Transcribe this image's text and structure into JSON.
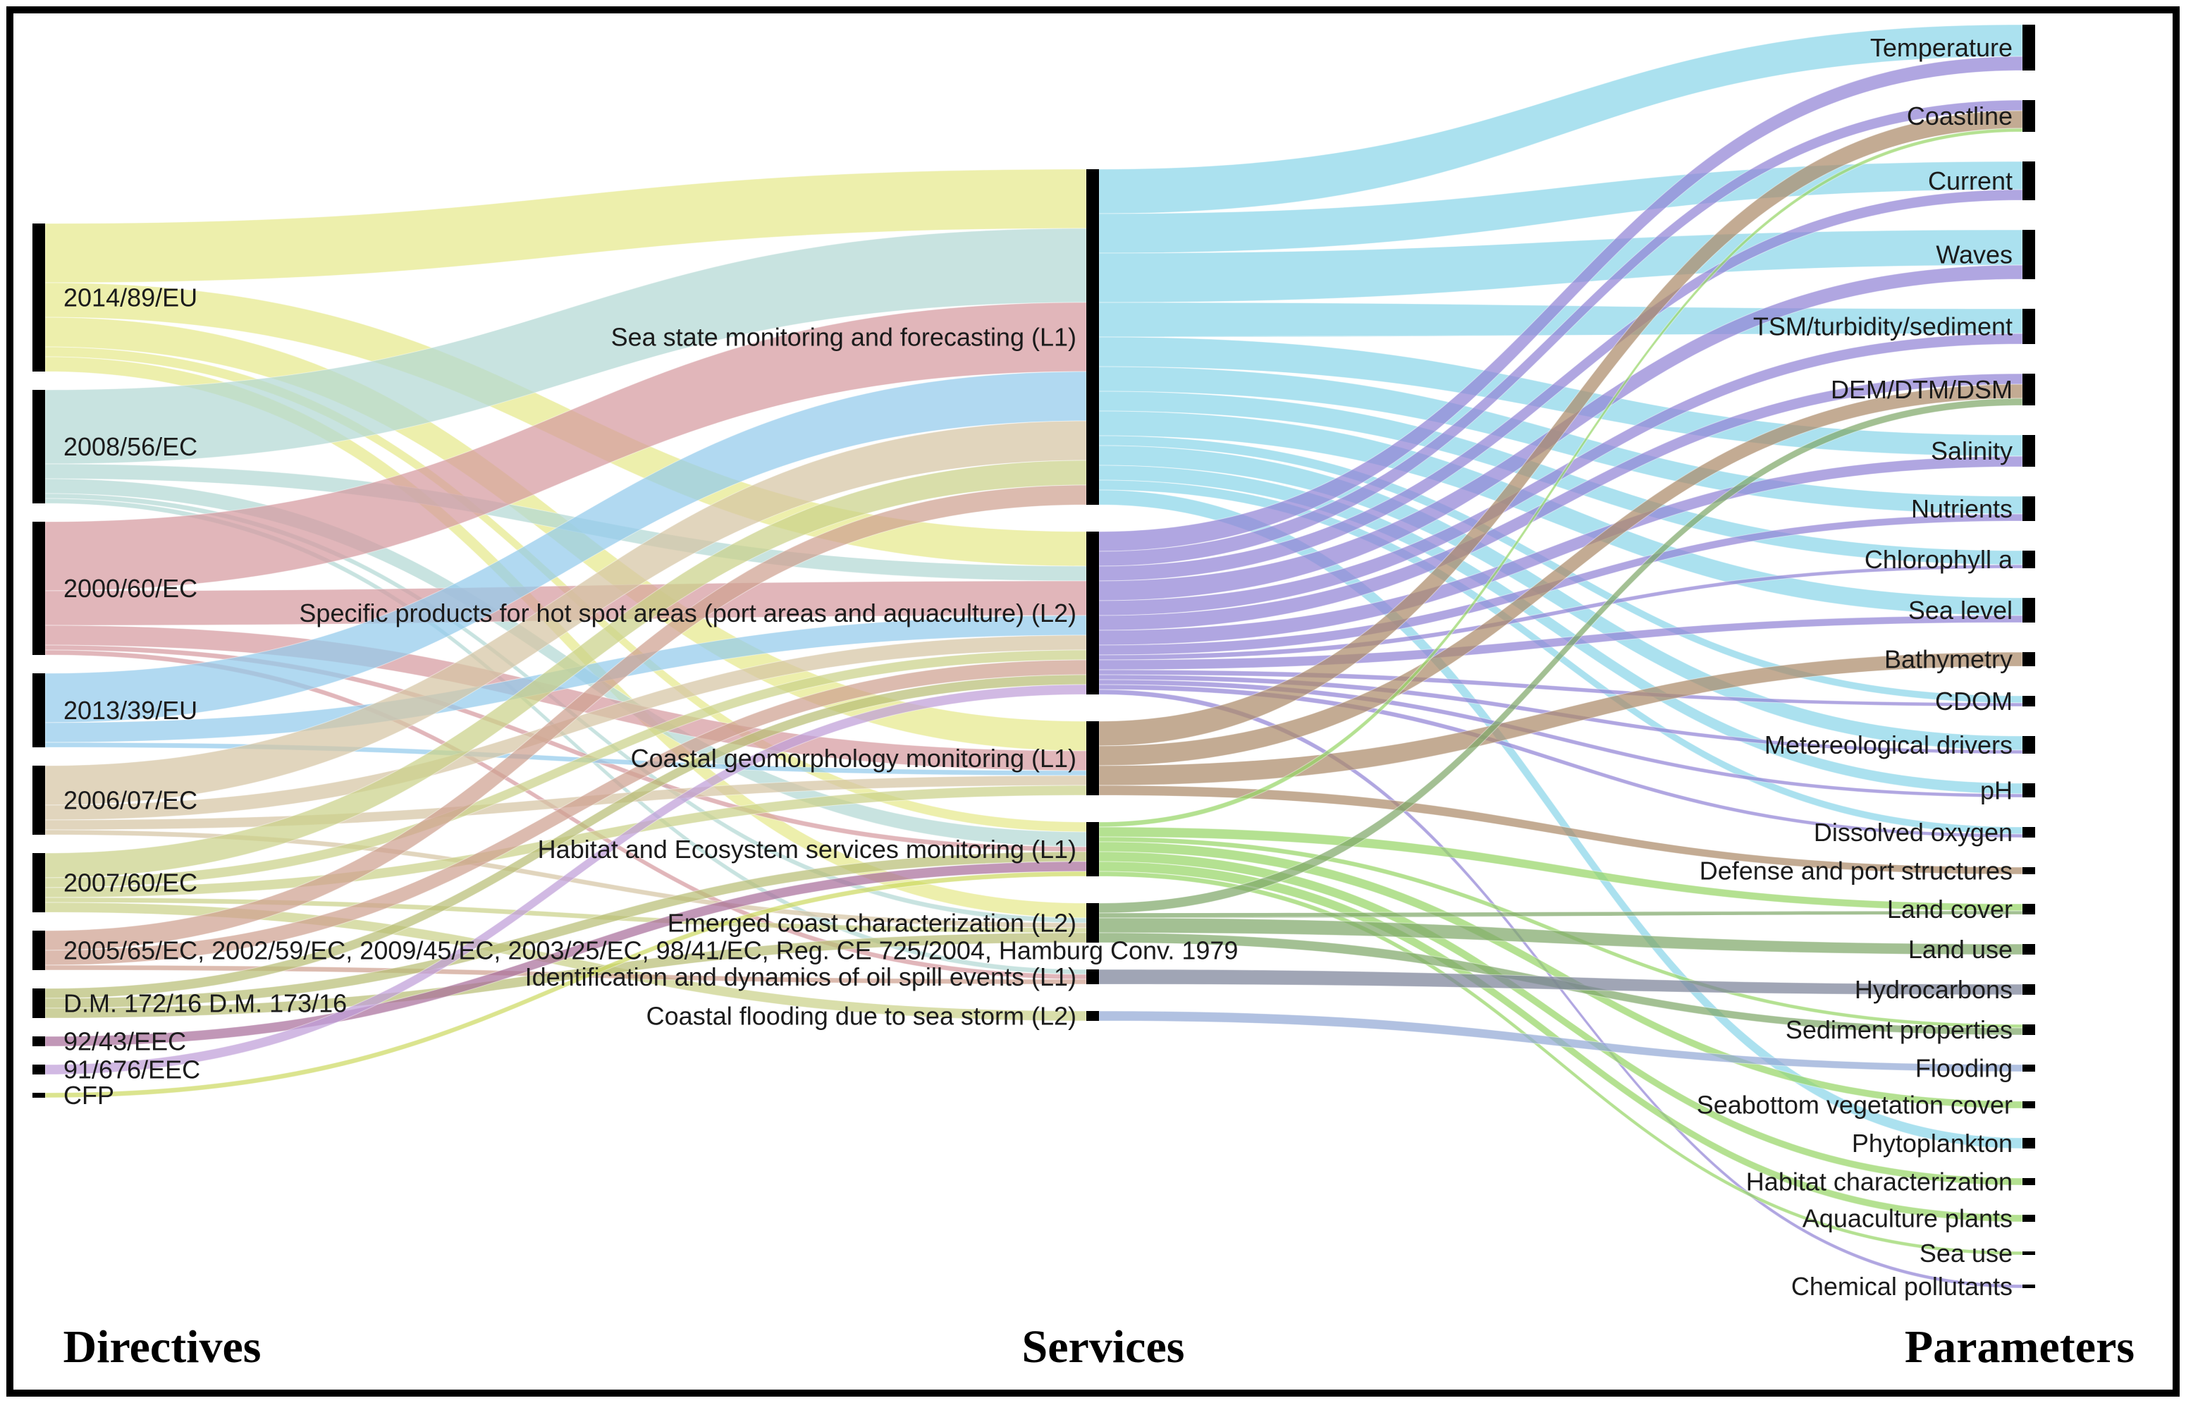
{
  "figure": {
    "headers": {
      "directives": "Directives",
      "services": "Services",
      "parameters": "Parameters"
    },
    "colors": {
      "node_bar": "#000000",
      "background": "#ffffff",
      "border": "#000000"
    }
  },
  "sankey": {
    "directives": [
      {
        "label": "2014/89/EU",
        "color": "#e6e98c"
      },
      {
        "label": "2008/56/EC",
        "color": "#b3d8d4"
      },
      {
        "label": "2000/60/EC",
        "color": "#d69aa0"
      },
      {
        "label": "2013/39/EU",
        "color": "#93cbec"
      },
      {
        "label": "2006/07/EC",
        "color": "#d5c5a3"
      },
      {
        "label": "2007/60/EC",
        "color": "#cbd189"
      },
      {
        "label": "2005/65/EC, 2002/59/EC, 2009/45/EC, 2003/25/EC, 98/41/EC, Reg. CE 725/2004, Hamburg Conv. 1979",
        "color": "#cfa190"
      },
      {
        "label": "D.M. 172/16 D.M. 173/16",
        "color": "#b8be76"
      },
      {
        "label": "92/43/EEC",
        "color": "#a96f9b"
      },
      {
        "label": "91/676/EEC",
        "color": "#bf9ed8"
      },
      {
        "label": "CFP",
        "color": "#cdd963"
      }
    ],
    "services": [
      {
        "label": "Sea state monitoring and forecasting (L1)",
        "color": "#8bd5e9"
      },
      {
        "label": "Specific products for hot spot areas (port areas and aquaculture) (L2)",
        "color": "#9184d5"
      },
      {
        "label": "Coastal geomorphology monitoring (L1)",
        "color": "#ac8a69"
      },
      {
        "label": "Habitat and Ecosystem services monitoring (L1)",
        "color": "#97d667"
      },
      {
        "label": "Emerged coast characterization (L2)",
        "color": "#7fa76a"
      },
      {
        "label": "Identification and dynamics of oil spill events (L1)",
        "color": "#7b8298"
      },
      {
        "label": "Coastal flooding due to sea storm (L2)",
        "color": "#93a9d5"
      }
    ],
    "parameters": [
      {
        "label": "Temperature"
      },
      {
        "label": "Coastline"
      },
      {
        "label": "Current"
      },
      {
        "label": "Waves"
      },
      {
        "label": "TSM/turbidity/sediment"
      },
      {
        "label": "DEM/DTM/DSM"
      },
      {
        "label": "Salinity"
      },
      {
        "label": "Nutrients"
      },
      {
        "label": "Chlorophyll a"
      },
      {
        "label": "Sea level"
      },
      {
        "label": "Bathymetry"
      },
      {
        "label": "CDOM"
      },
      {
        "label": "Metereological drivers"
      },
      {
        "label": "pH"
      },
      {
        "label": "Dissolved oxygen"
      },
      {
        "label": "Defense and port structures"
      },
      {
        "label": "Land cover"
      },
      {
        "label": "Land use"
      },
      {
        "label": "Hydrocarbons"
      },
      {
        "label": "Sediment properties"
      },
      {
        "label": "Flooding"
      },
      {
        "label": "Seabottom vegetation cover"
      },
      {
        "label": "Phytoplankton"
      },
      {
        "label": "Habitat characterization"
      },
      {
        "label": "Aquaculture plants"
      },
      {
        "label": "Sea use"
      },
      {
        "label": "Chemical pollutants"
      }
    ],
    "flows_directive_to_service": [
      [
        0,
        0,
        12
      ],
      [
        0,
        1,
        7
      ],
      [
        0,
        2,
        6
      ],
      [
        0,
        3,
        2
      ],
      [
        0,
        4,
        3
      ],
      [
        1,
        0,
        15
      ],
      [
        1,
        1,
        3
      ],
      [
        1,
        3,
        3
      ],
      [
        1,
        4,
        1
      ],
      [
        1,
        5,
        1
      ],
      [
        2,
        0,
        14
      ],
      [
        2,
        1,
        7
      ],
      [
        2,
        2,
        4
      ],
      [
        2,
        3,
        1
      ],
      [
        2,
        5,
        1
      ],
      [
        3,
        0,
        10
      ],
      [
        3,
        1,
        4
      ],
      [
        3,
        2,
        1
      ],
      [
        4,
        0,
        8
      ],
      [
        4,
        1,
        3
      ],
      [
        4,
        2,
        2
      ],
      [
        4,
        4,
        1
      ],
      [
        5,
        0,
        5
      ],
      [
        5,
        1,
        2
      ],
      [
        5,
        2,
        2
      ],
      [
        5,
        4,
        1
      ],
      [
        5,
        6,
        2
      ],
      [
        6,
        0,
        4
      ],
      [
        6,
        1,
        3
      ],
      [
        6,
        5,
        1
      ],
      [
        7,
        1,
        2
      ],
      [
        7,
        3,
        2
      ],
      [
        7,
        4,
        2
      ],
      [
        8,
        3,
        2
      ],
      [
        9,
        1,
        2
      ],
      [
        10,
        3,
        1
      ]
    ],
    "flows_service_to_parameter": [
      [
        0,
        0,
        9
      ],
      [
        0,
        2,
        8
      ],
      [
        0,
        3,
        10
      ],
      [
        0,
        4,
        7
      ],
      [
        0,
        6,
        6
      ],
      [
        0,
        7,
        5
      ],
      [
        0,
        8,
        4
      ],
      [
        0,
        9,
        5
      ],
      [
        0,
        11,
        2
      ],
      [
        0,
        12,
        4
      ],
      [
        0,
        13,
        3
      ],
      [
        0,
        14,
        2
      ],
      [
        0,
        22,
        3
      ],
      [
        1,
        0,
        4
      ],
      [
        1,
        1,
        3
      ],
      [
        1,
        2,
        3
      ],
      [
        1,
        3,
        4
      ],
      [
        1,
        4,
        3
      ],
      [
        1,
        5,
        3
      ],
      [
        1,
        6,
        3
      ],
      [
        1,
        7,
        2
      ],
      [
        1,
        8,
        1
      ],
      [
        1,
        9,
        2
      ],
      [
        1,
        11,
        1
      ],
      [
        1,
        12,
        1
      ],
      [
        1,
        13,
        1
      ],
      [
        1,
        14,
        1
      ],
      [
        1,
        26,
        1
      ],
      [
        2,
        1,
        5
      ],
      [
        2,
        5,
        4
      ],
      [
        2,
        10,
        4
      ],
      [
        2,
        15,
        2
      ],
      [
        3,
        1,
        1
      ],
      [
        3,
        16,
        2
      ],
      [
        3,
        19,
        1
      ],
      [
        3,
        21,
        2
      ],
      [
        3,
        23,
        2
      ],
      [
        3,
        24,
        2
      ],
      [
        3,
        25,
        1
      ],
      [
        4,
        5,
        2
      ],
      [
        4,
        16,
        1
      ],
      [
        4,
        17,
        3
      ],
      [
        4,
        19,
        2
      ],
      [
        5,
        18,
        3
      ],
      [
        6,
        20,
        2
      ]
    ]
  }
}
